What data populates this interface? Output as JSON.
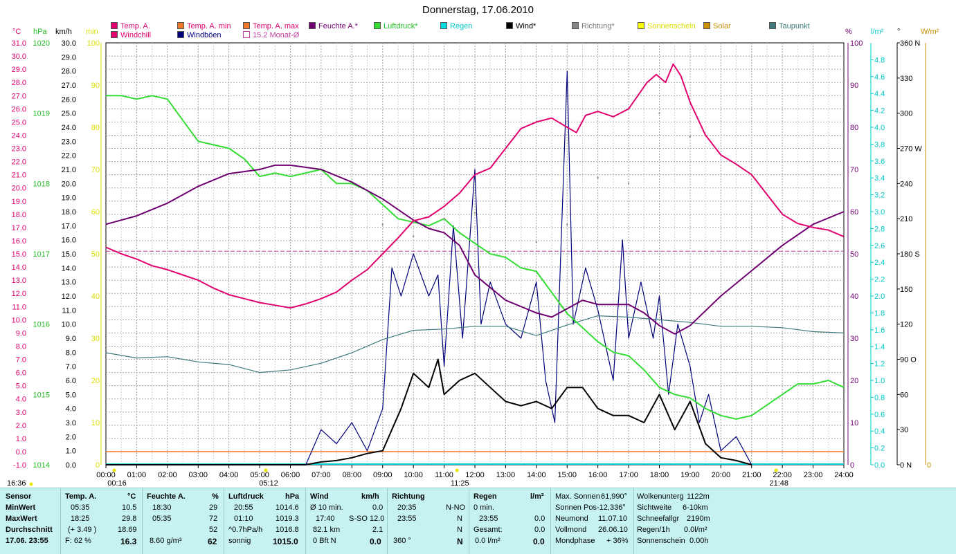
{
  "title": "Donnerstag, 17.06.2010",
  "colors": {
    "temp": "#e0006e",
    "windchill": "#e0006e",
    "temp_min": "#f07828",
    "temp_max": "#f07828",
    "feuchte": "#6e0070",
    "luftdruck": "#33dd33",
    "regen": "#00d0d0",
    "wind": "#000000",
    "windboeen": "#00007a",
    "richtung": "#888888",
    "sonnenschein": "#e8e800",
    "solar": "#c89000",
    "taupunkt": "#407a7a",
    "monat": "#c040a0"
  },
  "legend": {
    "temp": "Temp. A.",
    "temp_min": "Temp. A. min",
    "temp_max": "Temp. A. max",
    "feuchte": "Feuchte A.*",
    "luftdruck": "Luftdruck*",
    "regen": "Regen",
    "wind": "Wind*",
    "richtung": "Richtung*",
    "sonnenschein": "Sonnenschein",
    "solar": "Solar",
    "taupunkt": "Taupunkt",
    "windchill": "Windchill",
    "windboeen": "Windböen",
    "monat": "15.2 Monat-Ø"
  },
  "units": {
    "temp": "°C",
    "hpa": "hPa",
    "kmh": "km/h",
    "min": "min",
    "pct": "%",
    "lm2": "l/m²",
    "deg": "°",
    "wm2": "W/m²"
  },
  "axes": {
    "temp_ticks": [
      "31.0",
      "30.0",
      "29.0",
      "28.0",
      "27.0",
      "26.0",
      "25.0",
      "24.0",
      "23.0",
      "22.0",
      "21.0",
      "20.0",
      "19.0",
      "18.0",
      "17.0",
      "16.0",
      "15.0",
      "14.0",
      "13.0",
      "12.0",
      "11.0",
      "10.0",
      "9.0",
      "8.0",
      "7.0",
      "6.0",
      "5.0",
      "4.0",
      "3.0",
      "2.0",
      "1.0",
      "0.0",
      "-1.0"
    ],
    "hpa_ticks": [
      "1020",
      "1019",
      "1018",
      "1017",
      "1016",
      "1015",
      "1014"
    ],
    "kmh_ticks": [
      "30.0",
      "29.0",
      "28.0",
      "27.0",
      "26.0",
      "25.0",
      "24.0",
      "23.0",
      "22.0",
      "21.0",
      "20.0",
      "19.0",
      "18.0",
      "17.0",
      "16.0",
      "15.0",
      "14.0",
      "13.0",
      "12.0",
      "11.0",
      "10.0",
      "9.0",
      "8.0",
      "7.0",
      "6.0",
      "5.0",
      "4.0",
      "3.0",
      "2.0",
      "1.0",
      "0.0"
    ],
    "min_ticks": [
      "100",
      "90",
      "80",
      "70",
      "60",
      "50",
      "40",
      "30",
      "20",
      "10",
      "0"
    ],
    "pct_ticks": [
      "100",
      "90",
      "80",
      "70",
      "60",
      "50",
      "40",
      "30",
      "20",
      "10",
      "0"
    ],
    "rain_ticks": [
      "4.8",
      "4.6",
      "4.4",
      "4.2",
      "4.0",
      "3.8",
      "3.6",
      "3.4",
      "3.2",
      "3.0",
      "2.8",
      "2.6",
      "2.4",
      "2.2",
      "2.0",
      "1.8",
      "1.6",
      "1.4",
      "1.2",
      "1.0",
      "0.8",
      "0.6",
      "0.4",
      "0.2",
      "0.0"
    ],
    "dir_ticks": [
      "360 N",
      "330",
      "300",
      "270 W",
      "240",
      "210",
      "180 S",
      "150",
      "120",
      "90 O",
      "60",
      "30",
      "0 N"
    ],
    "wm2_ticks": [
      "0"
    ],
    "time_ticks": [
      "00:00",
      "01:00",
      "02:00",
      "03:00",
      "04:00",
      "05:00",
      "06:00",
      "07:00",
      "08:00",
      "09:00",
      "10:00",
      "11:00",
      "12:00",
      "13:00",
      "14:00",
      "15:00",
      "16:00",
      "17:00",
      "18:00",
      "19:00",
      "20:00",
      "21:00",
      "22:00",
      "23:00",
      "24:00"
    ],
    "markers": [
      {
        "time": 0.27,
        "label": "00:16"
      },
      {
        "time": 5.2,
        "label": "05:12"
      },
      {
        "time": 11.42,
        "label": "11:25"
      },
      {
        "time": 21.8,
        "label": "21:48"
      }
    ],
    "left_time": "16:36"
  },
  "chart_data": {
    "type": "line",
    "x_unit": "hours",
    "temp_range": [
      -1,
      31
    ],
    "hpa_range": [
      1014,
      1020
    ],
    "kmh_range": [
      0,
      30
    ],
    "pct_range": [
      0,
      100
    ],
    "monat_avg_temp": 15.2,
    "temp_max_line": 0.0,
    "series": [
      {
        "name": "Temp. A.",
        "axis": "temp",
        "x": [
          0,
          0.5,
          1,
          1.5,
          2,
          2.5,
          3,
          3.5,
          4,
          4.5,
          5,
          5.5,
          6,
          6.5,
          7,
          7.5,
          8,
          8.5,
          9,
          9.5,
          10,
          10.5,
          11,
          11.5,
          12,
          12.5,
          13,
          13.5,
          14,
          14.5,
          15,
          15.3,
          15.6,
          16,
          16.5,
          17,
          17.3,
          17.6,
          17.9,
          18.2,
          18.45,
          18.7,
          19,
          19.5,
          20,
          20.5,
          21,
          21.5,
          22,
          22.5,
          23,
          23.5,
          24
        ],
        "y": [
          15.5,
          15.0,
          14.6,
          14.1,
          13.8,
          13.4,
          13.0,
          12.4,
          11.9,
          11.6,
          11.3,
          11.1,
          10.9,
          11.2,
          11.6,
          12.1,
          13.0,
          13.8,
          15.0,
          16.2,
          17.5,
          17.8,
          18.6,
          19.6,
          21.0,
          21.5,
          23.0,
          24.5,
          25.0,
          25.3,
          24.6,
          24.2,
          25.5,
          25.8,
          25.4,
          26.0,
          27.0,
          28.0,
          28.6,
          28.0,
          29.4,
          28.5,
          26.5,
          24.0,
          22.5,
          21.8,
          21.0,
          19.5,
          18.0,
          17.3,
          17.0,
          16.8,
          16.3
        ]
      },
      {
        "name": "Feuchte A.*",
        "axis": "pct",
        "x": [
          0,
          1,
          2,
          3,
          4,
          5,
          5.5,
          6,
          7,
          8,
          9,
          10,
          10.5,
          11,
          11.5,
          12,
          12.5,
          13,
          14,
          14.5,
          15,
          15.5,
          16,
          17,
          17.5,
          18,
          18.5,
          19,
          20,
          21,
          22,
          23,
          24
        ],
        "y": [
          57,
          59,
          62,
          66,
          69,
          70,
          71,
          71,
          70,
          67,
          63,
          58,
          56,
          55,
          52,
          45,
          42,
          39,
          36,
          35,
          37,
          39,
          38,
          38,
          36,
          33,
          31,
          33,
          40,
          46,
          52,
          57,
          60
        ]
      },
      {
        "name": "Luftdruck*",
        "axis": "hpa",
        "x": [
          0,
          0.5,
          1,
          1.5,
          2,
          2.5,
          3,
          3.5,
          4,
          4.5,
          5,
          5.5,
          6,
          6.5,
          7,
          7.5,
          8,
          8.5,
          9,
          9.5,
          10,
          10.5,
          11,
          11.5,
          12,
          12.5,
          13,
          13.5,
          14,
          14.5,
          15,
          15.5,
          16,
          16.5,
          17,
          17.5,
          18,
          18.5,
          19,
          19.5,
          20,
          20.5,
          21,
          21.5,
          22,
          22.5,
          23,
          23.5,
          24
        ],
        "y": [
          1019.25,
          1019.25,
          1019.2,
          1019.25,
          1019.2,
          1018.9,
          1018.6,
          1018.55,
          1018.5,
          1018.35,
          1018.1,
          1018.15,
          1018.1,
          1018.15,
          1018.2,
          1018.0,
          1018.0,
          1017.9,
          1017.7,
          1017.5,
          1017.45,
          1017.4,
          1017.5,
          1017.3,
          1017.15,
          1017.0,
          1016.95,
          1016.8,
          1016.75,
          1016.45,
          1016.15,
          1015.95,
          1015.75,
          1015.6,
          1015.55,
          1015.35,
          1015.1,
          1015.0,
          1014.95,
          1014.8,
          1014.7,
          1014.65,
          1014.7,
          1014.85,
          1015.0,
          1015.15,
          1015.15,
          1015.2,
          1015.1
        ]
      },
      {
        "name": "Taupunkt",
        "axis": "temp",
        "x": [
          0,
          1,
          2,
          3,
          4,
          5,
          6,
          7,
          8,
          9,
          10,
          11,
          12,
          13,
          14,
          15,
          16,
          17,
          18,
          19,
          20,
          21,
          22,
          23,
          24
        ],
        "y": [
          7.5,
          7.1,
          7.2,
          6.8,
          6.6,
          6.0,
          6.2,
          6.7,
          7.5,
          8.5,
          9.2,
          9.3,
          9.5,
          9.5,
          8.8,
          9.6,
          10.3,
          10.2,
          10.0,
          9.8,
          9.5,
          9.5,
          9.4,
          9.1,
          9.0
        ]
      },
      {
        "name": "Wind*",
        "axis": "kmh",
        "x": [
          0,
          6.5,
          7,
          7.5,
          8,
          8.5,
          9,
          9.3,
          9.6,
          10,
          10.5,
          10.8,
          11,
          11.5,
          12,
          12.5,
          13,
          13.5,
          14,
          14.5,
          15,
          15.5,
          16,
          16.5,
          17,
          17.5,
          18,
          18.5,
          19,
          19.5,
          20,
          20.5,
          21
        ],
        "y": [
          0,
          0,
          0.2,
          0.3,
          0.5,
          0.8,
          1.0,
          2.5,
          4.0,
          6.5,
          5.5,
          7.5,
          5.0,
          6.0,
          6.5,
          5.5,
          4.5,
          4.2,
          4.5,
          4.0,
          5.5,
          5.5,
          4.0,
          3.5,
          3.5,
          3.0,
          5.0,
          2.5,
          4.5,
          1.5,
          0.5,
          0.3,
          0
        ]
      },
      {
        "name": "Windböen",
        "axis": "kmh",
        "x": [
          0,
          6.5,
          7,
          7.5,
          8,
          8.5,
          9,
          9.3,
          9.6,
          10,
          10.5,
          10.8,
          11,
          11.3,
          11.6,
          12,
          12.2,
          12.5,
          13,
          13.5,
          14,
          14.3,
          14.6,
          15,
          15.2,
          15.6,
          16,
          16.5,
          16.8,
          17,
          17.4,
          17.8,
          18,
          18.3,
          18.6,
          19,
          19.3,
          19.6,
          20,
          20.5,
          21
        ],
        "y": [
          0,
          0,
          2.5,
          1.5,
          3.0,
          1.0,
          4.0,
          14.0,
          12.0,
          15.0,
          12.0,
          13.5,
          7.0,
          17.0,
          9.0,
          21.0,
          10.0,
          13.0,
          10.0,
          9.0,
          13.0,
          6.0,
          3.0,
          28.0,
          10.0,
          14.0,
          11.0,
          6.0,
          16.0,
          9.0,
          13.0,
          9.0,
          12.0,
          5.0,
          10.0,
          7.0,
          3.0,
          5.0,
          1.0,
          2.0,
          0
        ]
      },
      {
        "name": "Richtung*",
        "axis": "deg",
        "x": [
          9,
          10,
          11,
          12,
          13,
          14,
          15,
          16,
          17,
          18,
          19
        ],
        "y": [
          205,
          195,
          210,
          215,
          225,
          190,
          205,
          245,
          240,
          300,
          280
        ]
      }
    ]
  },
  "info": {
    "sensor": {
      "h": "Sensor",
      "r1": "MinWert",
      "r2": "MaxWert",
      "r3": "Durchschnitt",
      "r4": "17.06. 23:55"
    },
    "temp": {
      "h": "Temp. A.",
      "u": "°C",
      "r1a": "05:35",
      "r1b": "10.5",
      "r2a": "18:25",
      "r2b": "29.8",
      "r3a": "(+ 3.49 )",
      "r3b": "18.69",
      "r4a": "F: 62 %",
      "r4b": "16.3"
    },
    "feuchte": {
      "h": "Feuchte A.",
      "u": "%",
      "r1a": "18:30",
      "r1b": "29",
      "r2a": "05:35",
      "r2b": "72",
      "r3b": "52",
      "r4a": "8.60 g/m³",
      "r4b": "62"
    },
    "luftdruck": {
      "h": "Luftdruck",
      "u": "hPa",
      "r1a": "20:55",
      "r1b": "1014.6",
      "r2a": "01:10",
      "r2b": "1019.3",
      "r3a": "^0.7hPa/h",
      "r3b": "1016.8",
      "r4a": "sonnig",
      "r4b": "1015.0"
    },
    "wind": {
      "h": "Wind",
      "u": "km/h",
      "r1a": "Ø 10 min.",
      "r1b": "0.0",
      "r2a": "17:40",
      "r2m": "S-SO",
      "r2b": "12.0",
      "r3a": "82.1 km",
      "r3b": "2.1",
      "r4a": "0 Bft N",
      "r4b": "0.0"
    },
    "richtung": {
      "h": "Richtung",
      "r1a": "20:35",
      "r1b": "N-NO",
      "r2a": "23:55",
      "r2b": "N",
      "r3b": "N",
      "r4a": "360 °",
      "r4b": "N"
    },
    "regen": {
      "h": "Regen",
      "u": "l/m²",
      "r1a": "0 min.",
      "r2a": "23:55",
      "r2b": "0.0",
      "r3a": "Gesamt:",
      "r3b": "0.0",
      "r4a": "0.0 l/m²",
      "r4b": "0.0"
    },
    "astro": {
      "r1a": "Max. Sonnen",
      "r1b": "61,990°",
      "r2a": "Sonnen Pos",
      "r2b": "-12,336°",
      "r3a": "Neumond",
      "r3b": "11.07.10",
      "r4a": "Vollmond",
      "r4b": "26.06.10",
      "r5a": "Mondphase",
      "r5b": "+ 36%"
    },
    "wolken": {
      "r1a": "Wolkenunterg",
      "r1b": "1122m",
      "r2a": "Sichtweite",
      "r2b": "6-10km",
      "r3a": "Schneefallgr",
      "r3b": "2190m",
      "r4a": "Regen/1h",
      "r4b": "0.0l/m²",
      "r5a": "Sonnenschein",
      "r5b": "0.00h"
    }
  }
}
